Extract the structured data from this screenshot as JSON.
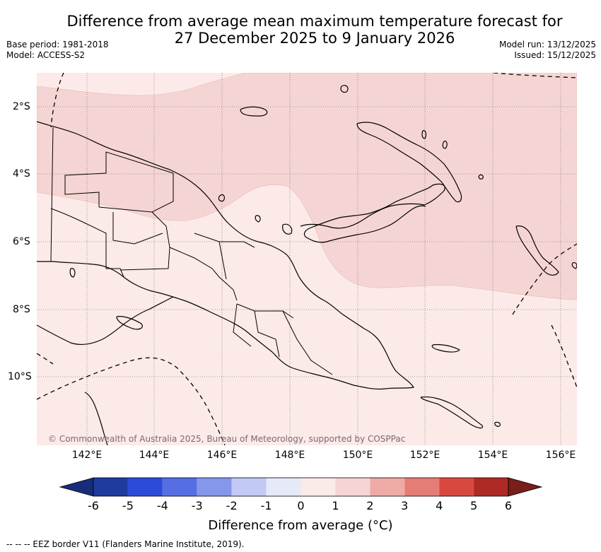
{
  "header": {
    "title_line1": "Difference from average mean maximum temperature forecast for",
    "title_line2": "27 December 2025 to 9 January 2026",
    "base_period": "Base period: 1981-2018",
    "model": "Model: ACCESS-S2",
    "model_run": "Model run: 13/12/2025",
    "issued": "Issued: 15/12/2025"
  },
  "map": {
    "lat_labels": [
      "2°S",
      "4°S",
      "6°S",
      "8°S",
      "10°S"
    ],
    "lon_labels": [
      "142°E",
      "144°E",
      "146°E",
      "148°E",
      "150°E",
      "152°E",
      "154°E",
      "156°E"
    ],
    "copyright": "© Commonwealth of Australia 2025, Bureau of Meteorology, supported by COSPPac",
    "fill_colors": {
      "band_0_1": "#fbeae8",
      "band_1_2": "#f5d5d3",
      "land_line": "#000000"
    }
  },
  "colorbar": {
    "ticks": [
      "-6",
      "-5",
      "-4",
      "-3",
      "-2",
      "-1",
      "0",
      "1",
      "2",
      "3",
      "4",
      "5",
      "6"
    ],
    "colors": [
      "#1f3b9e",
      "#2c4bd8",
      "#566ee3",
      "#8597ea",
      "#c2c9f5",
      "#e6eaf8",
      "#fbeae8",
      "#f5d5d3",
      "#efaaa5",
      "#e47d76",
      "#d9483f",
      "#ad2a25"
    ],
    "low_extend_color": "#182c7a",
    "high_extend_color": "#7a1e1a",
    "title": "Difference from average (°C)"
  },
  "footer": {
    "eez_note": "--  --  -- EEZ border V11 (Flanders Marine Institute, 2019)."
  }
}
